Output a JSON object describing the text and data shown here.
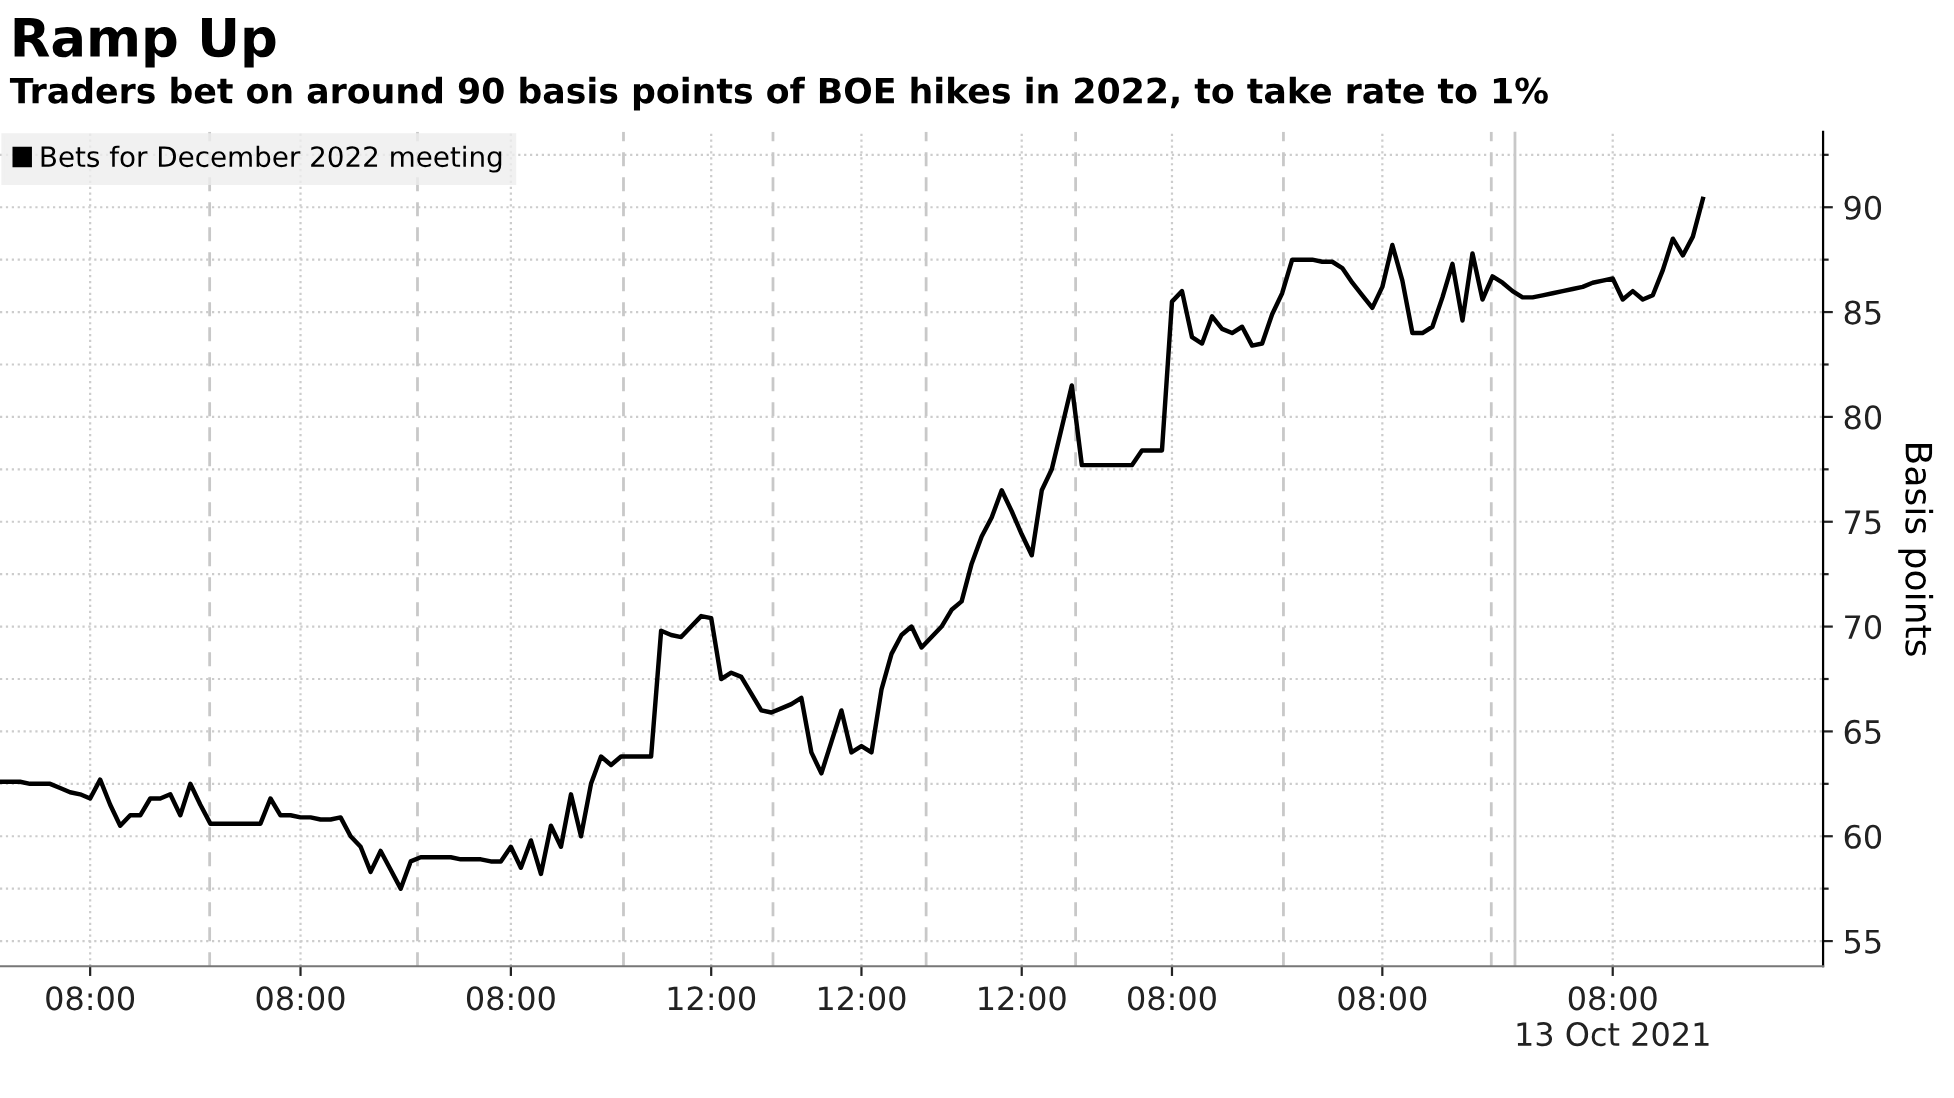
{
  "chart_data": {
    "type": "line",
    "title": "Ramp Up",
    "subtitle": "Traders bet on around 90 basis points of BOE hikes in 2022, to take rate to 1%",
    "ylabel": "Basis points",
    "categories": [
      null,
      null,
      null,
      null,
      null,
      null,
      null,
      null,
      null,
      "08:00",
      null,
      null,
      null,
      null,
      null,
      null,
      null,
      null,
      null,
      null,
      null,
      null,
      null,
      null,
      null,
      null,
      null,
      null,
      null,
      null,
      "08:00",
      null,
      null,
      null,
      null,
      null,
      null,
      null,
      null,
      null,
      null,
      null,
      null,
      null,
      null,
      null,
      null,
      null,
      null,
      null,
      null,
      "08:00",
      null,
      null,
      null,
      null,
      null,
      null,
      null,
      null,
      null,
      null,
      null,
      null,
      null,
      null,
      null,
      null,
      null,
      null,
      null,
      "12:00",
      null,
      null,
      null,
      null,
      null,
      null,
      null,
      null,
      null,
      null,
      null,
      null,
      null,
      null,
      "12:00",
      null,
      null,
      null,
      null,
      null,
      null,
      null,
      null,
      null,
      null,
      null,
      null,
      null,
      null,
      null,
      "12:00",
      null,
      null,
      null,
      null,
      null,
      null,
      null,
      null,
      null,
      null,
      null,
      null,
      null,
      null,
      "08:00",
      null,
      null,
      null,
      null,
      null,
      null,
      null,
      null,
      null,
      null,
      null,
      null,
      null,
      null,
      null,
      null,
      null,
      null,
      null,
      null,
      "08:00",
      null,
      null,
      null,
      null,
      null,
      null,
      null,
      null,
      null,
      null,
      null,
      null,
      null,
      null,
      null,
      null,
      null,
      null,
      null,
      null,
      null,
      null,
      "08:00\n13 Oct 2021",
      null,
      null,
      null,
      null,
      null,
      null,
      null,
      null,
      null,
      null,
      null,
      null,
      null,
      null,
      null,
      null,
      null,
      null,
      null,
      null,
      null
    ],
    "series": [
      {
        "name": "Bets for December 2022 meeting",
        "color": "#000000",
        "values": [
          62.6,
          62.6,
          62.6,
          62.5,
          62.5,
          62.5,
          62.3,
          62.1,
          62.0,
          61.8,
          62.7,
          61.5,
          60.5,
          61.0,
          61.0,
          61.8,
          61.8,
          62.0,
          61.0,
          62.5,
          61.5,
          60.6,
          60.6,
          60.6,
          60.6,
          60.6,
          60.6,
          61.8,
          61.0,
          61.0,
          60.9,
          60.9,
          60.8,
          60.8,
          60.9,
          60.0,
          59.5,
          58.3,
          59.3,
          58.4,
          57.5,
          58.8,
          59.0,
          59.0,
          59.0,
          59.0,
          58.9,
          58.9,
          58.9,
          58.8,
          58.8,
          59.5,
          58.5,
          59.8,
          58.2,
          60.5,
          59.5,
          62.0,
          60.0,
          62.5,
          63.8,
          63.4,
          63.8,
          63.8,
          63.8,
          63.8,
          69.8,
          69.6,
          69.5,
          70.0,
          70.5,
          70.4,
          67.5,
          67.8,
          67.6,
          66.8,
          66.0,
          65.9,
          66.1,
          66.3,
          66.6,
          64.0,
          63.0,
          64.5,
          66.0,
          64.0,
          64.3,
          64.0,
          67.0,
          68.7,
          69.6,
          70.0,
          69.0,
          69.5,
          70.0,
          70.8,
          71.2,
          73.0,
          74.3,
          75.2,
          76.5,
          75.5,
          74.4,
          73.4,
          76.5,
          77.5,
          79.5,
          81.5,
          77.7,
          77.7,
          77.7,
          77.7,
          77.7,
          77.7,
          78.4,
          78.4,
          78.4,
          85.5,
          86.0,
          83.8,
          83.5,
          84.8,
          84.2,
          84.0,
          84.3,
          83.4,
          83.5,
          84.9,
          85.9,
          87.5,
          87.5,
          87.5,
          87.4,
          87.4,
          87.1,
          86.4,
          85.8,
          85.2,
          86.2,
          88.2,
          86.5,
          84.0,
          84.0,
          84.3,
          85.7,
          87.3,
          84.6,
          87.8,
          85.6,
          86.7,
          86.4,
          86.0,
          85.7,
          85.7,
          85.8,
          85.9,
          86.0,
          86.1,
          86.2,
          86.4,
          86.5,
          86.6,
          85.6,
          86.0,
          85.6,
          85.8,
          87.0,
          88.5,
          87.7,
          88.6,
          90.4,
          null,
          null,
          null,
          null,
          null,
          null,
          null,
          null,
          null,
          null,
          null,
          null
        ]
      }
    ],
    "ylim": [
      53.8,
      93.6
    ],
    "yticks": [
      55,
      {
        "value": 57.5,
        "label": null
      },
      60,
      {
        "value": 62.5,
        "label": null
      },
      65,
      {
        "value": 67.5,
        "label": null
      },
      70,
      {
        "value": 72.5,
        "label": null
      },
      75,
      {
        "value": 77.5,
        "label": null
      },
      80,
      {
        "value": 82.5,
        "label": null
      },
      85,
      {
        "value": 87.5,
        "label": null
      },
      90,
      {
        "value": 92.5,
        "label": null
      }
    ],
    "grid": true,
    "legend": "top left",
    "line_style": "solid",
    "marker": "none"
  }
}
